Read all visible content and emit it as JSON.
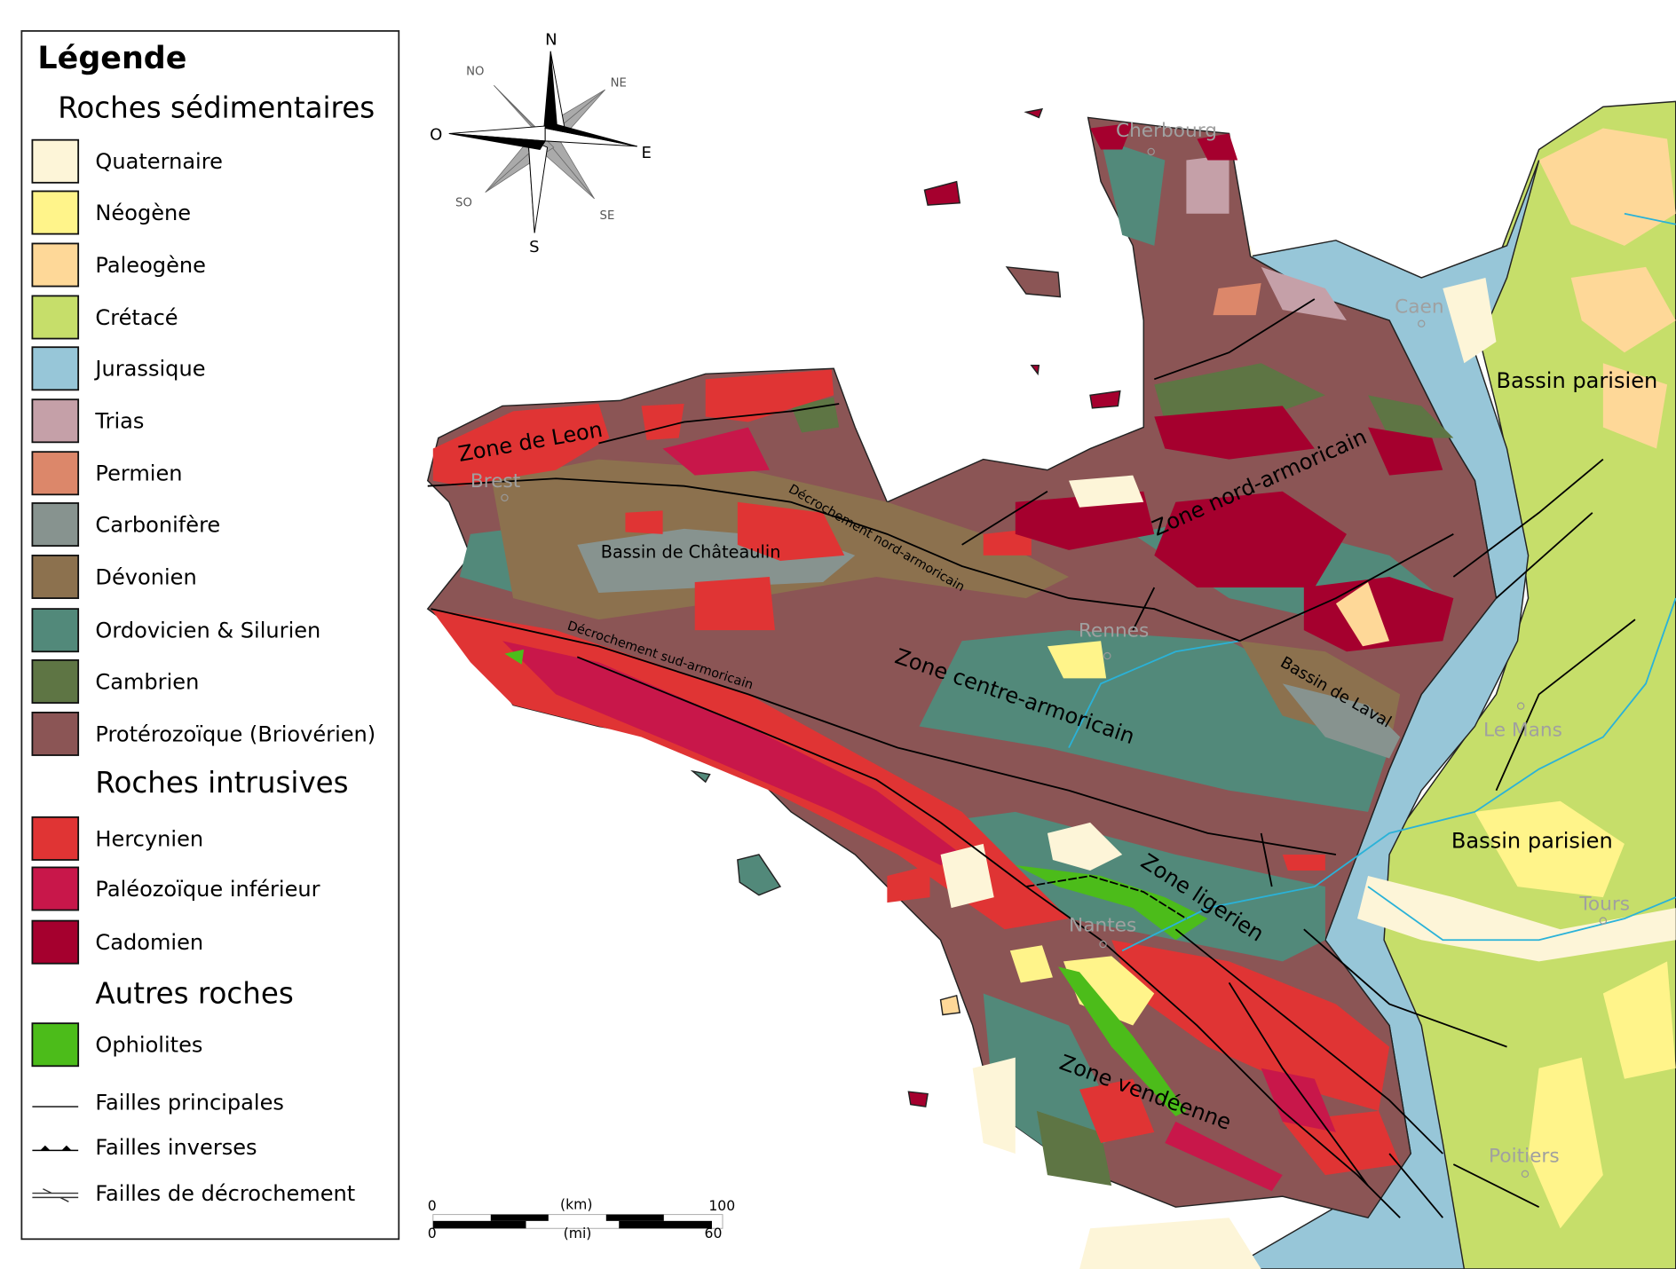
{
  "legend": {
    "title": "Légende",
    "sections": [
      {
        "heading": "Roches sédimentaires",
        "items": [
          {
            "label": "Quaternaire",
            "color": "#fdf5d8"
          },
          {
            "label": "Néogène",
            "color": "#fff48a"
          },
          {
            "label": "Paleogène",
            "color": "#fed898"
          },
          {
            "label": "Crétacé",
            "color": "#c6de6a"
          },
          {
            "label": "Jurassique",
            "color": "#97c6d8"
          },
          {
            "label": "Trias",
            "color": "#c5a0a8"
          },
          {
            "label": "Permien",
            "color": "#dc876a"
          },
          {
            "label": "Carbonifère",
            "color": "#87938f"
          },
          {
            "label": "Dévonien",
            "color": "#8c714e"
          },
          {
            "label": "Ordovicien & Silurien",
            "color": "#52897a"
          },
          {
            "label": "Cambrien",
            "color": "#5e7544"
          },
          {
            "label": "Protérozoïque (Briovérien)",
            "color": "#8b5555"
          }
        ]
      },
      {
        "heading": "Roches intrusives",
        "items": [
          {
            "label": "Hercynien",
            "color": "#e03434"
          },
          {
            "label": "Paléozoïque inférieur",
            "color": "#c8174a"
          },
          {
            "label": "Cadomien",
            "color": "#a5002e"
          }
        ]
      },
      {
        "heading": "Autres roches",
        "items": [
          {
            "label": "Ophiolites",
            "color": "#4cbc1a"
          }
        ]
      }
    ],
    "lines": [
      {
        "label": "Failles principales"
      },
      {
        "label": "Failles inverses"
      },
      {
        "label": "Failles de décrochement"
      }
    ]
  },
  "compass": {
    "n": "N",
    "s": "S",
    "e": "E",
    "o": "O",
    "ne": "NE",
    "no": "NO",
    "se": "SE",
    "so": "SO"
  },
  "scale": {
    "km_start": "0",
    "km_unit": "(km)",
    "km_end": "100",
    "mi_start": "0",
    "mi_unit": "(mi)",
    "mi_end": "60"
  },
  "cities": [
    "Cherbourg",
    "Caen",
    "Brest",
    "Rennes",
    "Le Mans",
    "Nantes",
    "Tours",
    "Poitiers"
  ],
  "zones": {
    "leon": "Zone de Leon",
    "nord": "Zone nord-armoricain",
    "centre": "Zone centre-armoricain",
    "ligerien": "Zone ligerien",
    "vendeenne": "Zone vendéenne",
    "bp1": "Bassin parisien",
    "bp2": "Bassin parisien",
    "chateaulin": "Bassin de Châteaulin",
    "laval": "Bassin de Laval",
    "dna": "Décrochement nord-armoricain",
    "dsa": "Décrochement sud-armoricain"
  }
}
